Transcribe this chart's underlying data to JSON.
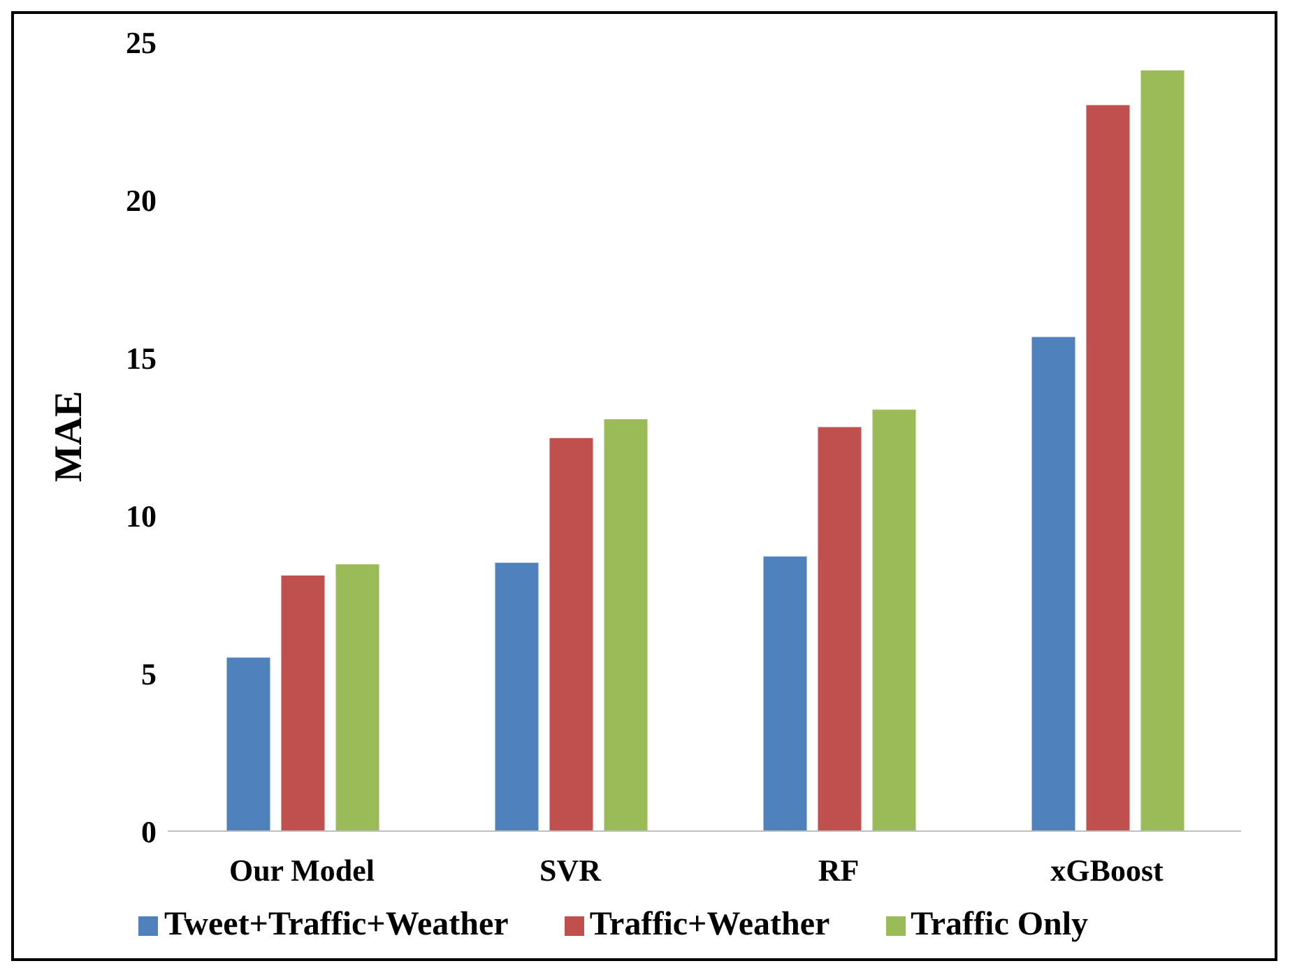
{
  "chart_data": {
    "type": "bar",
    "ylabel": "MAE",
    "categories": [
      "Our Model",
      "SVR",
      "RF",
      "xGBoost"
    ],
    "series": [
      {
        "name": "Tweet+Traffic+Weather",
        "color": "#4f81bd",
        "values": [
          5.5,
          8.5,
          8.7,
          15.65
        ]
      },
      {
        "name": "Traffic+Weather",
        "color": "#c0504d",
        "values": [
          8.1,
          12.45,
          12.8,
          23.0
        ]
      },
      {
        "name": "Traffic Only",
        "color": "#9bbb59",
        "values": [
          8.45,
          13.05,
          13.35,
          24.1
        ]
      }
    ],
    "ylim": [
      0,
      25
    ],
    "yticks": [
      0,
      5,
      10,
      15,
      20,
      25
    ],
    "grid": false,
    "legend": "bottom"
  }
}
